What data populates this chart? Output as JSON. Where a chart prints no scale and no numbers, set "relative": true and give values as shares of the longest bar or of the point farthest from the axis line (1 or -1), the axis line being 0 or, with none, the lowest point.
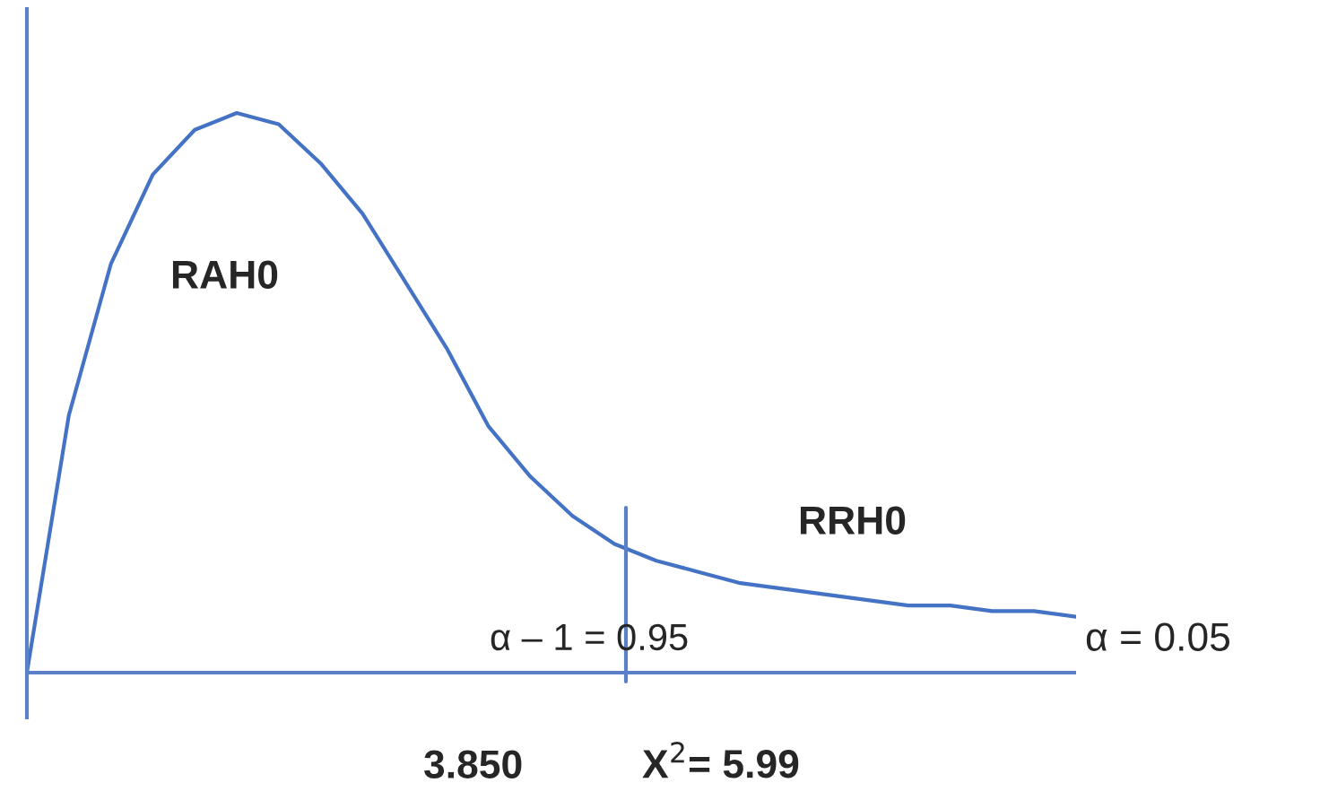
{
  "chart_data": {
    "type": "line",
    "relative": true,
    "legend": false,
    "marker": "none",
    "line_style": "solid",
    "categories": [
      null,
      null,
      null,
      null,
      null,
      null,
      null,
      null,
      null,
      null,
      null,
      null,
      null,
      null,
      null,
      null,
      null,
      null,
      null,
      null,
      null,
      null,
      null,
      null,
      null,
      null
    ],
    "series": [
      {
        "color": "#4472c4",
        "values": [
          0,
          0.46,
          0.73,
          0.89,
          0.97,
          1,
          0.98,
          0.91,
          0.82,
          0.7,
          0.58,
          0.44,
          0.35,
          0.28,
          0.23,
          0.2,
          0.18,
          0.16,
          0.15,
          0.14,
          0.13,
          0.12,
          0.12,
          0.11,
          0.11,
          0.1
        ]
      }
    ],
    "annotations": [
      "RAH0",
      "RRH0",
      "α – 1 = 0.95",
      "α = 0.05",
      "3.850",
      "X$^{2}$= 5.99"
    ]
  }
}
